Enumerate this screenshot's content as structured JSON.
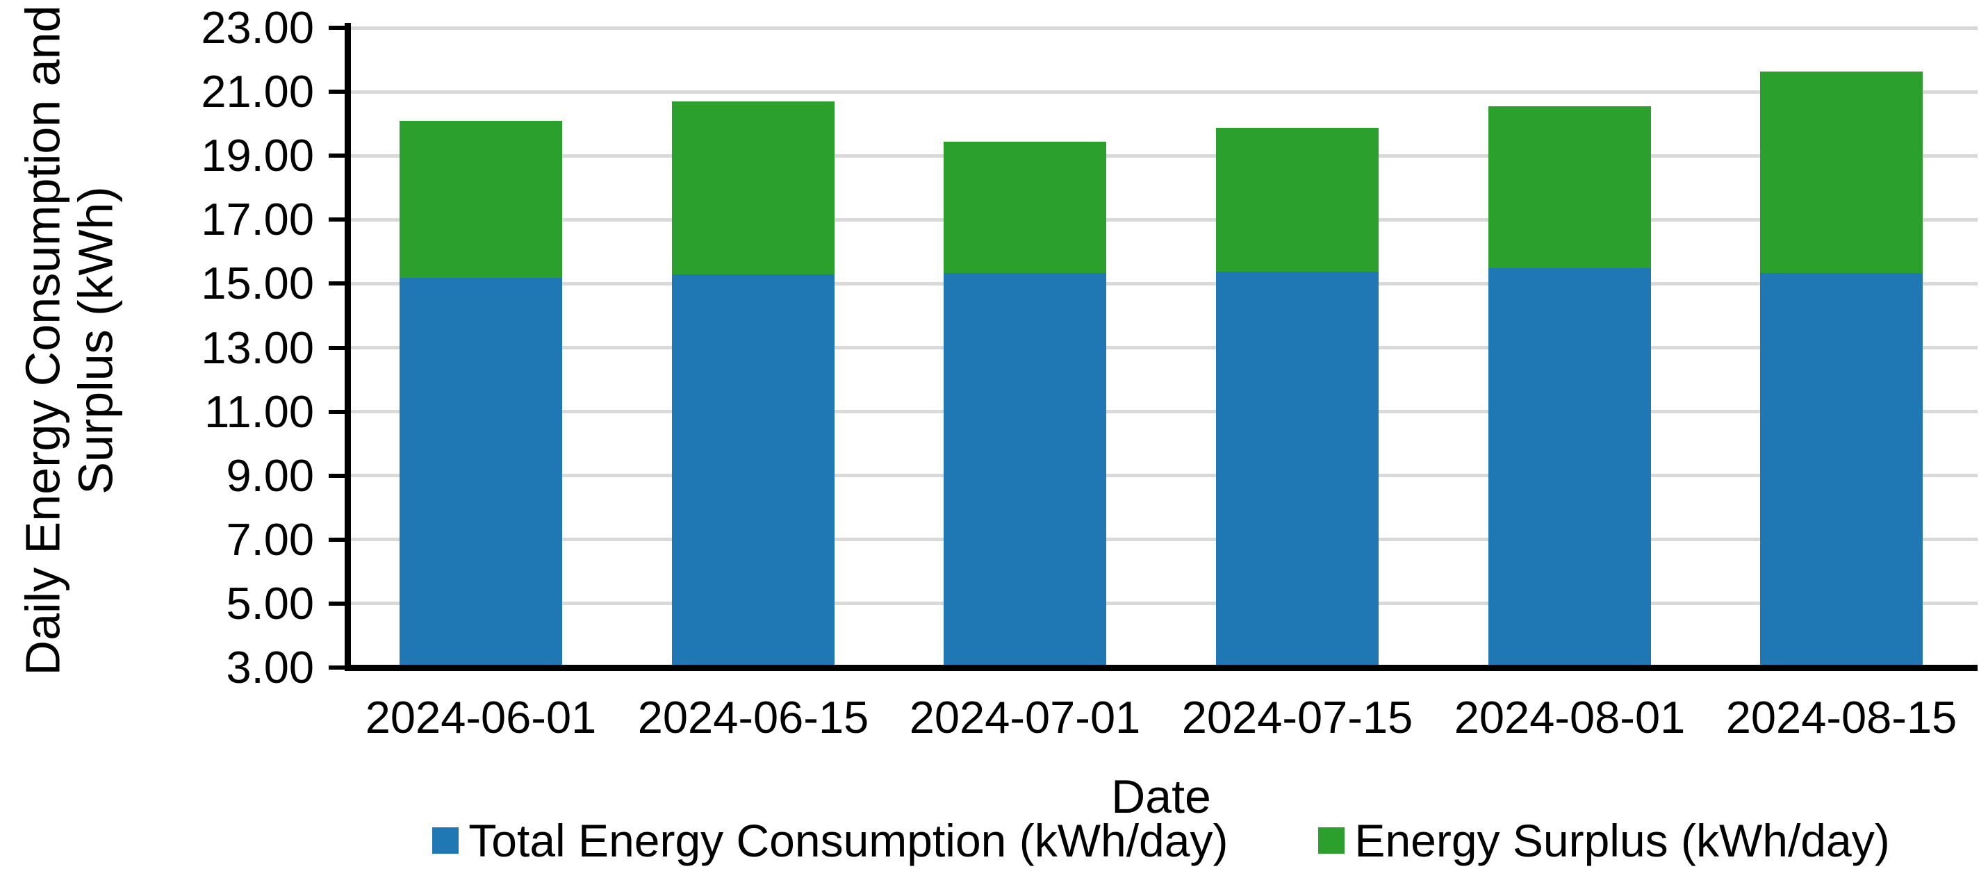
{
  "chart_data": {
    "type": "bar",
    "stacked": true,
    "title": "",
    "xlabel": "Date",
    "ylabel": "Daily Energy Consumption and Surplus (kWh)",
    "ylabel_lines": [
      "Daily Energy Consumption and",
      "Surplus (kWh)"
    ],
    "categories": [
      "2024-06-01",
      "2024-06-15",
      "2024-07-01",
      "2024-07-15",
      "2024-08-01",
      "2024-08-15"
    ],
    "series": [
      {
        "name": "Total Energy Consumption (kWh/day)",
        "color": "#1f77b4",
        "values": [
          15.1,
          15.2,
          15.25,
          15.3,
          15.4,
          15.25
        ]
      },
      {
        "name": "Energy Surplus (kWh/day)",
        "color": "#2ca02c",
        "values": [
          4.9,
          5.4,
          4.1,
          4.5,
          5.05,
          6.3
        ]
      }
    ],
    "stack_totals": [
      20.0,
      20.6,
      19.35,
      19.8,
      20.45,
      21.55
    ],
    "ylim": [
      3.0,
      23.0
    ],
    "ytick_step": 2.0,
    "yticks": [
      {
        "value": 23,
        "label": "23.00"
      },
      {
        "value": 21,
        "label": "21.00"
      },
      {
        "value": 19,
        "label": "19.00"
      },
      {
        "value": 17,
        "label": "17.00"
      },
      {
        "value": 15,
        "label": "15.00"
      },
      {
        "value": 13,
        "label": "13.00"
      },
      {
        "value": 11,
        "label": "11.00"
      },
      {
        "value": 9,
        "label": "9.00"
      },
      {
        "value": 7,
        "label": "7.00"
      },
      {
        "value": 5,
        "label": "5.00"
      },
      {
        "value": 3,
        "label": "3.00"
      }
    ],
    "grid": true,
    "legend_position": "bottom",
    "colors": {
      "grid": "#d9d9d9",
      "axis": "#000000",
      "text": "#000000",
      "background": "#ffffff"
    }
  }
}
